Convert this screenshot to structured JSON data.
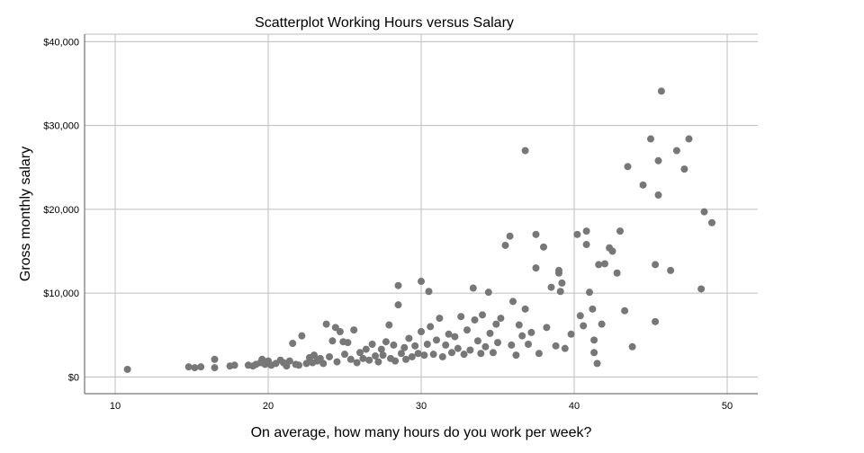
{
  "chart_data": {
    "type": "scatter",
    "title": "Scatterplot Working Hours versus Salary",
    "xlabel": "On average, how many hours do you work per week?",
    "ylabel": "Gross monthly salary",
    "xlim": [
      8,
      52
    ],
    "ylim": [
      -2000,
      40900
    ],
    "x_ticks": [
      10,
      20,
      30,
      40,
      50
    ],
    "x_tick_labels": [
      "10",
      "20",
      "30",
      "40",
      "50"
    ],
    "y_ticks": [
      0,
      10000,
      20000,
      30000,
      40000
    ],
    "y_tick_labels": [
      "$0",
      "$10,000",
      "$20,000",
      "$30,000",
      "$40,000"
    ],
    "grid": true,
    "marker_color": "#777777",
    "points": [
      [
        10.8,
        900
      ],
      [
        14.8,
        1200
      ],
      [
        15.2,
        1100
      ],
      [
        15.6,
        1200
      ],
      [
        16.5,
        2100
      ],
      [
        16.5,
        1100
      ],
      [
        17.5,
        1300
      ],
      [
        17.8,
        1400
      ],
      [
        18.7,
        1400
      ],
      [
        19.0,
        1300
      ],
      [
        19.2,
        1500
      ],
      [
        19.5,
        1700
      ],
      [
        19.6,
        2100
      ],
      [
        19.8,
        1500
      ],
      [
        20.0,
        1900
      ],
      [
        20.2,
        1400
      ],
      [
        20.5,
        1600
      ],
      [
        20.8,
        2000
      ],
      [
        21.0,
        1700
      ],
      [
        21.2,
        1300
      ],
      [
        21.4,
        1900
      ],
      [
        21.6,
        4000
      ],
      [
        21.8,
        1500
      ],
      [
        22.0,
        1400
      ],
      [
        22.2,
        4900
      ],
      [
        22.5,
        1600
      ],
      [
        22.7,
        2300
      ],
      [
        22.9,
        1700
      ],
      [
        23.0,
        2600
      ],
      [
        23.2,
        1900
      ],
      [
        23.4,
        2200
      ],
      [
        23.6,
        1600
      ],
      [
        23.8,
        6300
      ],
      [
        24.0,
        2400
      ],
      [
        24.2,
        4300
      ],
      [
        24.4,
        5900
      ],
      [
        24.5,
        1800
      ],
      [
        24.7,
        5400
      ],
      [
        24.9,
        4200
      ],
      [
        25.0,
        2700
      ],
      [
        25.2,
        4100
      ],
      [
        25.4,
        2100
      ],
      [
        25.6,
        5600
      ],
      [
        25.8,
        1700
      ],
      [
        26.0,
        2900
      ],
      [
        26.2,
        2200
      ],
      [
        26.4,
        3300
      ],
      [
        26.6,
        2000
      ],
      [
        26.8,
        3900
      ],
      [
        27.0,
        2500
      ],
      [
        27.2,
        1800
      ],
      [
        27.4,
        3300
      ],
      [
        27.5,
        2600
      ],
      [
        27.7,
        4200
      ],
      [
        27.9,
        6200
      ],
      [
        28.0,
        2200
      ],
      [
        28.2,
        3800
      ],
      [
        28.3,
        1900
      ],
      [
        28.5,
        10900
      ],
      [
        28.5,
        8600
      ],
      [
        28.7,
        2800
      ],
      [
        28.9,
        3500
      ],
      [
        29.0,
        2100
      ],
      [
        29.2,
        4600
      ],
      [
        29.4,
        2400
      ],
      [
        29.6,
        3700
      ],
      [
        29.8,
        2800
      ],
      [
        30.0,
        11400
      ],
      [
        30.0,
        5400
      ],
      [
        30.2,
        2600
      ],
      [
        30.4,
        3900
      ],
      [
        30.5,
        10200
      ],
      [
        30.6,
        6000
      ],
      [
        30.8,
        2700
      ],
      [
        31.0,
        4400
      ],
      [
        31.2,
        7000
      ],
      [
        31.4,
        2400
      ],
      [
        31.6,
        3800
      ],
      [
        31.8,
        5100
      ],
      [
        32.0,
        2900
      ],
      [
        32.2,
        4800
      ],
      [
        32.4,
        3400
      ],
      [
        32.6,
        7200
      ],
      [
        32.8,
        2700
      ],
      [
        33.0,
        5600
      ],
      [
        33.2,
        3200
      ],
      [
        33.4,
        10600
      ],
      [
        33.5,
        6800
      ],
      [
        33.7,
        4300
      ],
      [
        33.9,
        2800
      ],
      [
        34.0,
        7400
      ],
      [
        34.2,
        3600
      ],
      [
        34.4,
        10100
      ],
      [
        34.5,
        5200
      ],
      [
        34.7,
        2900
      ],
      [
        34.9,
        6300
      ],
      [
        35.0,
        4100
      ],
      [
        35.2,
        7000
      ],
      [
        35.5,
        15700
      ],
      [
        35.8,
        16800
      ],
      [
        35.9,
        3800
      ],
      [
        36.0,
        9000
      ],
      [
        36.2,
        2600
      ],
      [
        36.4,
        6200
      ],
      [
        36.6,
        4900
      ],
      [
        36.8,
        27000
      ],
      [
        36.8,
        8100
      ],
      [
        37.0,
        3900
      ],
      [
        37.2,
        5300
      ],
      [
        37.5,
        17000
      ],
      [
        37.5,
        13000
      ],
      [
        37.7,
        2800
      ],
      [
        38.0,
        15500
      ],
      [
        38.2,
        5900
      ],
      [
        38.5,
        10700
      ],
      [
        38.8,
        3700
      ],
      [
        39.0,
        12700
      ],
      [
        39.0,
        12400
      ],
      [
        39.1,
        10200
      ],
      [
        39.2,
        11200
      ],
      [
        39.4,
        3400
      ],
      [
        39.8,
        5100
      ],
      [
        40.2,
        17000
      ],
      [
        40.4,
        7300
      ],
      [
        40.6,
        6100
      ],
      [
        40.8,
        17400
      ],
      [
        40.8,
        15800
      ],
      [
        41.0,
        10100
      ],
      [
        41.2,
        8100
      ],
      [
        41.3,
        4400
      ],
      [
        41.3,
        2900
      ],
      [
        41.5,
        1600
      ],
      [
        41.6,
        13400
      ],
      [
        41.8,
        6300
      ],
      [
        42.0,
        13500
      ],
      [
        42.3,
        15400
      ],
      [
        42.5,
        15000
      ],
      [
        42.8,
        12400
      ],
      [
        43.0,
        17400
      ],
      [
        43.3,
        7900
      ],
      [
        43.5,
        25100
      ],
      [
        43.8,
        3600
      ],
      [
        44.5,
        22900
      ],
      [
        45.0,
        28400
      ],
      [
        45.3,
        13400
      ],
      [
        45.3,
        6600
      ],
      [
        45.5,
        25800
      ],
      [
        45.5,
        21700
      ],
      [
        45.7,
        34100
      ],
      [
        46.3,
        12700
      ],
      [
        46.7,
        27000
      ],
      [
        47.2,
        24800
      ],
      [
        47.5,
        28400
      ],
      [
        48.3,
        10500
      ],
      [
        48.5,
        19700
      ],
      [
        49.0,
        18400
      ]
    ]
  }
}
